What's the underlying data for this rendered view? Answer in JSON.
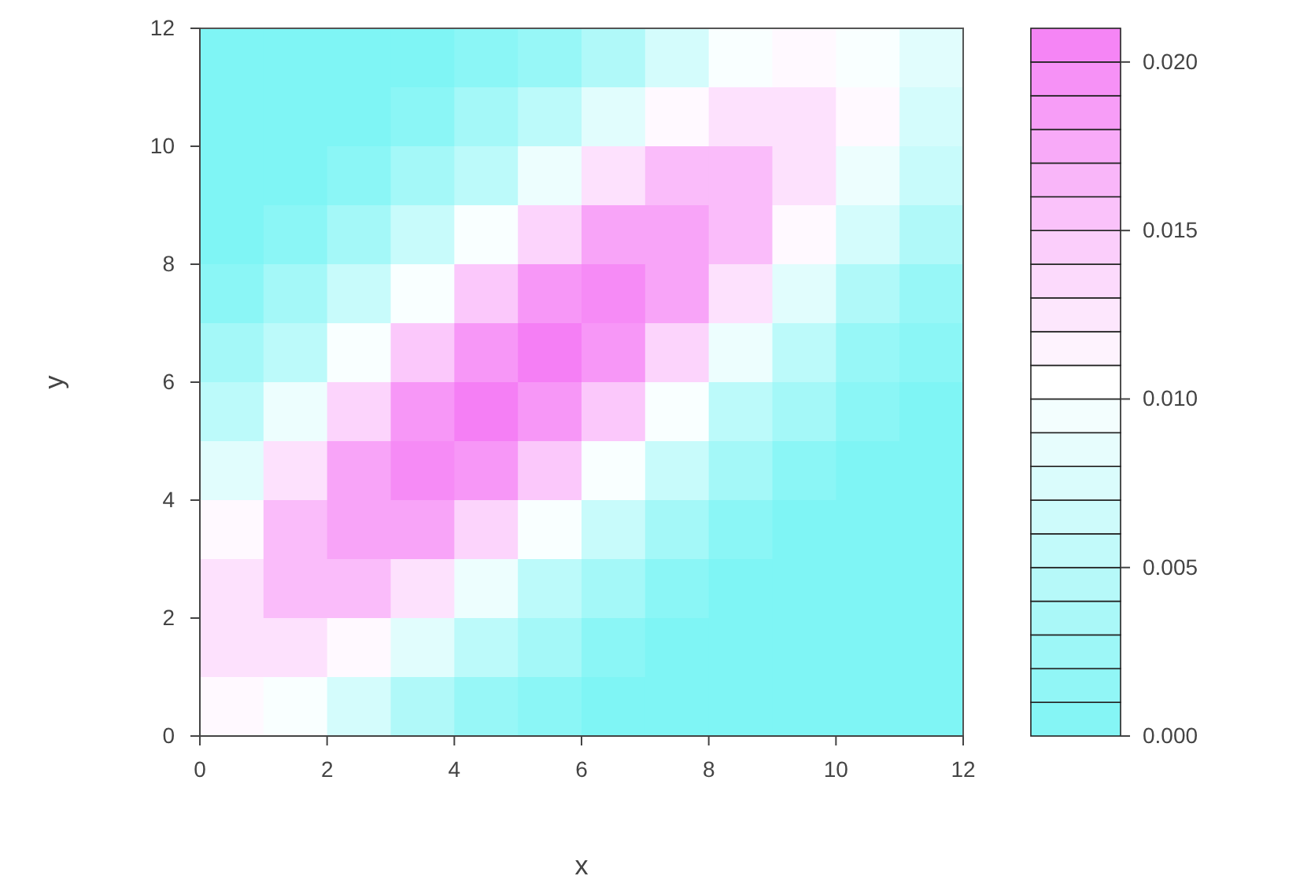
{
  "chart_data": {
    "type": "heatmap",
    "xlabel": "x",
    "ylabel": "y",
    "xlim": [
      0,
      12
    ],
    "xticks": [
      0,
      2,
      4,
      6,
      8,
      10,
      12
    ],
    "ylim": [
      0,
      12
    ],
    "yticks": [
      0,
      2,
      4,
      6,
      8,
      10,
      12
    ],
    "x": [
      0.5,
      1.5,
      2.5,
      3.5,
      4.5,
      5.5,
      6.5,
      7.5,
      8.5,
      9.5,
      10.5,
      11.5
    ],
    "y": [
      11.5,
      10.5,
      9.5,
      8.5,
      7.5,
      6.5,
      5.5,
      4.5,
      3.5,
      2.5,
      1.5,
      0.5
    ],
    "cells": [
      [
        0.0,
        0.0,
        0.0,
        0.0,
        0.001,
        0.002,
        0.004,
        0.007,
        0.01,
        0.011,
        0.01,
        0.008
      ],
      [
        0.0,
        0.0,
        0.0,
        0.001,
        0.003,
        0.005,
        0.008,
        0.011,
        0.013,
        0.013,
        0.011,
        0.007
      ],
      [
        0.0,
        0.0,
        0.001,
        0.003,
        0.005,
        0.009,
        0.013,
        0.016,
        0.016,
        0.013,
        0.009,
        0.006
      ],
      [
        0.0,
        0.001,
        0.003,
        0.006,
        0.01,
        0.014,
        0.018,
        0.018,
        0.016,
        0.011,
        0.007,
        0.004
      ],
      [
        0.001,
        0.003,
        0.006,
        0.01,
        0.015,
        0.019,
        0.02,
        0.018,
        0.013,
        0.008,
        0.004,
        0.002
      ],
      [
        0.003,
        0.005,
        0.01,
        0.015,
        0.019,
        0.021,
        0.019,
        0.014,
        0.009,
        0.005,
        0.002,
        0.001
      ],
      [
        0.005,
        0.009,
        0.014,
        0.019,
        0.021,
        0.019,
        0.015,
        0.01,
        0.005,
        0.003,
        0.001,
        0.0
      ],
      [
        0.008,
        0.013,
        0.018,
        0.02,
        0.019,
        0.015,
        0.01,
        0.006,
        0.003,
        0.001,
        0.0,
        0.0
      ],
      [
        0.011,
        0.016,
        0.018,
        0.018,
        0.014,
        0.01,
        0.006,
        0.003,
        0.001,
        0.0,
        0.0,
        0.0
      ],
      [
        0.013,
        0.016,
        0.016,
        0.013,
        0.009,
        0.005,
        0.003,
        0.001,
        0.0,
        0.0,
        0.0,
        0.0
      ],
      [
        0.013,
        0.013,
        0.011,
        0.008,
        0.005,
        0.003,
        0.001,
        0.0,
        0.0,
        0.0,
        0.0,
        0.0
      ],
      [
        0.011,
        0.01,
        0.007,
        0.004,
        0.002,
        0.001,
        0.0,
        0.0,
        0.0,
        0.0,
        0.0,
        0.0
      ]
    ],
    "clim": [
      0,
      0.021
    ],
    "cticks": [
      {
        "value": 0,
        "label": "0.000"
      },
      {
        "value": 0.005,
        "label": "0.005"
      },
      {
        "value": 0.01,
        "label": "0.010"
      },
      {
        "value": 0.015,
        "label": "0.015"
      },
      {
        "value": 0.02,
        "label": "0.020"
      }
    ]
  }
}
